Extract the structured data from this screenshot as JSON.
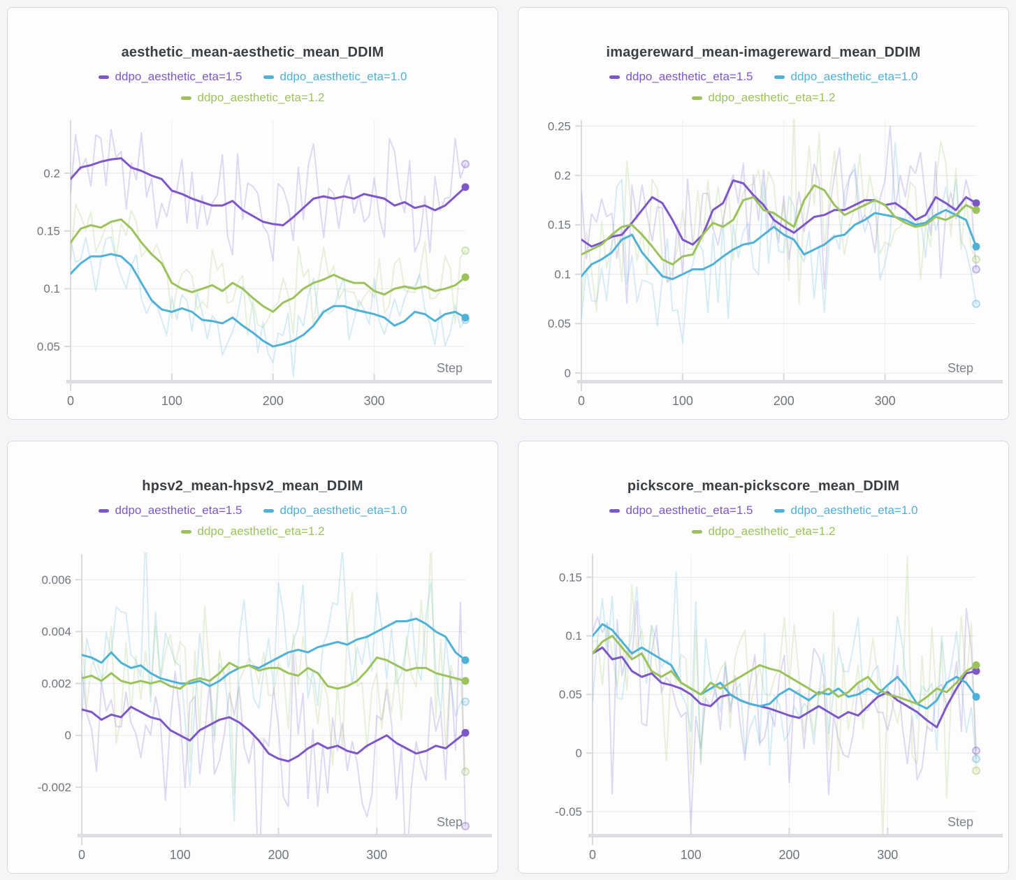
{
  "page": {
    "background": "#f4f5f6",
    "panel_count": 4
  },
  "palette": {
    "eta_1_5": "#7d57c7",
    "eta_1_0": "#4fb1d6",
    "eta_1_2": "#9cc35b",
    "grid_line": "#e8e8eb",
    "axis_line": "#d9d9de",
    "tick_text": "#6f767d",
    "step_text": "#7d848b",
    "title_text": "#3a3f44"
  },
  "chart_data": [
    {
      "type": "line",
      "title": "aesthetic_mean-aesthetic_mean_DDIM",
      "xlabel": "Step",
      "xlim": [
        0,
        390
      ],
      "ylim": [
        0.021,
        0.246
      ],
      "x_ticks": [
        0,
        100,
        200,
        300
      ],
      "x_tick_labels": [
        "0",
        "100",
        "200",
        "300"
      ],
      "y_ticks": [
        0.05,
        0.1,
        0.15,
        0.2
      ],
      "y_tick_labels": [
        "0.05",
        "0.1",
        "0.15",
        "0.2"
      ],
      "x_step_interval": 10,
      "note": "bold lines are smoothed means; faint jagged traces are raw values; dot = last smoothed value, ring = last raw value",
      "series": [
        {
          "name": "ddpo_aesthetic_eta=1.5",
          "color": "#7d57c7",
          "raw_amplitude": 0.033,
          "raw_end": 0.208,
          "seed": 3,
          "values": [
            0.195,
            0.205,
            0.207,
            0.21,
            0.212,
            0.213,
            0.205,
            0.202,
            0.198,
            0.195,
            0.185,
            0.182,
            0.178,
            0.175,
            0.172,
            0.172,
            0.176,
            0.168,
            0.163,
            0.158,
            0.156,
            0.155,
            0.162,
            0.17,
            0.178,
            0.18,
            0.178,
            0.18,
            0.178,
            0.182,
            0.18,
            0.178,
            0.172,
            0.175,
            0.17,
            0.172,
            0.168,
            0.172,
            0.18,
            0.188
          ]
        },
        {
          "name": "ddpo_aesthetic_eta=1.0",
          "color": "#4fb1d6",
          "raw_amplitude": 0.027,
          "raw_end": 0.073,
          "seed": 7,
          "values": [
            0.113,
            0.122,
            0.128,
            0.128,
            0.13,
            0.128,
            0.12,
            0.105,
            0.09,
            0.082,
            0.08,
            0.083,
            0.08,
            0.073,
            0.072,
            0.07,
            0.075,
            0.068,
            0.062,
            0.055,
            0.05,
            0.052,
            0.055,
            0.06,
            0.068,
            0.08,
            0.085,
            0.085,
            0.082,
            0.08,
            0.078,
            0.075,
            0.068,
            0.072,
            0.08,
            0.078,
            0.072,
            0.078,
            0.08,
            0.075
          ]
        },
        {
          "name": "ddpo_aesthetic_eta=1.2",
          "color": "#9cc35b",
          "raw_amplitude": 0.027,
          "raw_end": 0.133,
          "seed": 13,
          "values": [
            0.14,
            0.152,
            0.155,
            0.153,
            0.158,
            0.16,
            0.152,
            0.14,
            0.13,
            0.122,
            0.105,
            0.1,
            0.097,
            0.1,
            0.103,
            0.098,
            0.105,
            0.1,
            0.092,
            0.085,
            0.08,
            0.088,
            0.092,
            0.1,
            0.105,
            0.108,
            0.112,
            0.108,
            0.105,
            0.105,
            0.098,
            0.095,
            0.1,
            0.102,
            0.1,
            0.102,
            0.098,
            0.1,
            0.103,
            0.11
          ]
        }
      ]
    },
    {
      "type": "line",
      "title": "imagereward_mean-imagereward_mean_DDIM",
      "xlabel": "Step",
      "xlim": [
        0,
        390
      ],
      "ylim": [
        -0.007,
        0.256
      ],
      "x_ticks": [
        0,
        100,
        200,
        300
      ],
      "x_tick_labels": [
        "0",
        "100",
        "200",
        "300"
      ],
      "y_ticks": [
        0,
        0.05,
        0.1,
        0.15,
        0.2,
        0.25
      ],
      "y_tick_labels": [
        "0",
        "0.05",
        "0.1",
        "0.15",
        "0.2",
        "0.25"
      ],
      "x_step_interval": 10,
      "note": "bold lines are smoothed means; faint jagged traces are raw values; dot = last smoothed value, ring = last raw value",
      "series": [
        {
          "name": "ddpo_aesthetic_eta=1.5",
          "color": "#7d57c7",
          "raw_amplitude": 0.055,
          "raw_end": 0.105,
          "seed": 17,
          "values": [
            0.135,
            0.128,
            0.132,
            0.138,
            0.14,
            0.152,
            0.165,
            0.178,
            0.172,
            0.155,
            0.135,
            0.13,
            0.14,
            0.165,
            0.172,
            0.195,
            0.192,
            0.18,
            0.17,
            0.155,
            0.148,
            0.142,
            0.15,
            0.158,
            0.16,
            0.165,
            0.165,
            0.17,
            0.175,
            0.175,
            0.17,
            0.172,
            0.165,
            0.155,
            0.16,
            0.178,
            0.172,
            0.165,
            0.178,
            0.172
          ]
        },
        {
          "name": "ddpo_aesthetic_eta=1.0",
          "color": "#4fb1d6",
          "raw_amplitude": 0.055,
          "raw_end": 0.07,
          "seed": 23,
          "values": [
            0.098,
            0.11,
            0.115,
            0.122,
            0.135,
            0.14,
            0.122,
            0.11,
            0.098,
            0.095,
            0.1,
            0.105,
            0.105,
            0.11,
            0.118,
            0.125,
            0.13,
            0.132,
            0.14,
            0.148,
            0.14,
            0.135,
            0.12,
            0.125,
            0.13,
            0.138,
            0.14,
            0.15,
            0.155,
            0.162,
            0.16,
            0.158,
            0.155,
            0.15,
            0.152,
            0.16,
            0.165,
            0.16,
            0.155,
            0.128
          ]
        },
        {
          "name": "ddpo_aesthetic_eta=1.2",
          "color": "#9cc35b",
          "raw_amplitude": 0.055,
          "raw_end": 0.115,
          "seed": 29,
          "values": [
            0.12,
            0.125,
            0.13,
            0.14,
            0.148,
            0.15,
            0.14,
            0.128,
            0.115,
            0.11,
            0.118,
            0.12,
            0.14,
            0.152,
            0.148,
            0.155,
            0.175,
            0.178,
            0.165,
            0.162,
            0.155,
            0.148,
            0.175,
            0.19,
            0.185,
            0.17,
            0.16,
            0.165,
            0.17,
            0.175,
            0.17,
            0.158,
            0.152,
            0.148,
            0.15,
            0.158,
            0.155,
            0.16,
            0.17,
            0.165
          ]
        }
      ]
    },
    {
      "type": "line",
      "title": "hpsv2_mean-hpsv2_mean_DDIM",
      "xlabel": "Step",
      "xlim": [
        0,
        390
      ],
      "ylim": [
        -0.0038,
        0.007
      ],
      "x_ticks": [
        0,
        100,
        200,
        300
      ],
      "x_tick_labels": [
        "0",
        "100",
        "200",
        "300"
      ],
      "y_ticks": [
        -0.002,
        0,
        0.002,
        0.004,
        0.006
      ],
      "y_tick_labels": [
        "-0.002",
        "0",
        "0.002",
        "0.004",
        "0.006"
      ],
      "x_step_interval": 10,
      "note": "bold lines are smoothed means; faint jagged traces are raw values; dot = last smoothed value, ring = last raw value",
      "series": [
        {
          "name": "ddpo_aesthetic_eta=1.5",
          "color": "#7d57c7",
          "raw_amplitude": 0.0023,
          "raw_end": -0.0035,
          "seed": 31,
          "values": [
            0.001,
            0.0009,
            0.0006,
            0.0008,
            0.0007,
            0.0011,
            0.0009,
            0.0007,
            0.0006,
            0.0002,
            0.0,
            -0.0002,
            0.0002,
            0.0004,
            0.0006,
            0.0007,
            0.0005,
            0.0002,
            -0.0002,
            -0.0007,
            -0.0009,
            -0.001,
            -0.0008,
            -0.0005,
            -0.0003,
            -0.0005,
            -0.0004,
            -0.0006,
            -0.0007,
            -0.0004,
            -0.0002,
            0.0,
            -0.0003,
            -0.0005,
            -0.0007,
            -0.0006,
            -0.0004,
            -0.0005,
            -0.0002,
            0.0001
          ]
        },
        {
          "name": "ddpo_aesthetic_eta=1.0",
          "color": "#4fb1d6",
          "raw_amplitude": 0.0024,
          "raw_end": 0.0013,
          "seed": 37,
          "values": [
            0.0031,
            0.003,
            0.0028,
            0.0032,
            0.0028,
            0.0026,
            0.0027,
            0.0024,
            0.0022,
            0.0021,
            0.002,
            0.002,
            0.0021,
            0.0019,
            0.0021,
            0.0024,
            0.0026,
            0.0027,
            0.0026,
            0.0028,
            0.003,
            0.0032,
            0.0033,
            0.0032,
            0.0034,
            0.0035,
            0.0036,
            0.0035,
            0.0037,
            0.0038,
            0.004,
            0.0042,
            0.0044,
            0.0044,
            0.0045,
            0.0043,
            0.004,
            0.0038,
            0.0032,
            0.0029
          ]
        },
        {
          "name": "ddpo_aesthetic_eta=1.2",
          "color": "#9cc35b",
          "raw_amplitude": 0.0023,
          "raw_end": -0.0014,
          "seed": 41,
          "values": [
            0.0022,
            0.0023,
            0.0021,
            0.0024,
            0.0021,
            0.002,
            0.0021,
            0.002,
            0.0021,
            0.0019,
            0.0018,
            0.0021,
            0.0022,
            0.0021,
            0.0024,
            0.0028,
            0.0026,
            0.0027,
            0.0025,
            0.0026,
            0.0026,
            0.0024,
            0.0023,
            0.0026,
            0.0024,
            0.0019,
            0.0018,
            0.0019,
            0.0021,
            0.0025,
            0.003,
            0.0029,
            0.0027,
            0.0025,
            0.0026,
            0.0026,
            0.0024,
            0.0023,
            0.0022,
            0.0021
          ]
        }
      ]
    },
    {
      "type": "line",
      "title": "pickscore_mean-pickscore_mean_DDIM",
      "xlabel": "Step",
      "xlim": [
        0,
        390
      ],
      "ylim": [
        -0.069,
        0.17
      ],
      "x_ticks": [
        0,
        100,
        200,
        300
      ],
      "x_tick_labels": [
        "0",
        "100",
        "200",
        "300"
      ],
      "y_ticks": [
        -0.05,
        0,
        0.05,
        0.1,
        0.15
      ],
      "y_tick_labels": [
        "-0.05",
        "0",
        "0.05",
        "0.1",
        "0.15"
      ],
      "x_step_interval": 10,
      "note": "bold lines are smoothed means; faint jagged traces are raw values; dot = last smoothed value, ring = last raw value",
      "series": [
        {
          "name": "ddpo_aesthetic_eta=1.5",
          "color": "#7d57c7",
          "raw_amplitude": 0.046,
          "raw_end": 0.002,
          "seed": 43,
          "values": [
            0.085,
            0.09,
            0.08,
            0.082,
            0.07,
            0.065,
            0.068,
            0.06,
            0.058,
            0.055,
            0.05,
            0.042,
            0.04,
            0.048,
            0.05,
            0.045,
            0.042,
            0.04,
            0.038,
            0.035,
            0.032,
            0.03,
            0.035,
            0.04,
            0.035,
            0.03,
            0.035,
            0.032,
            0.04,
            0.048,
            0.052,
            0.045,
            0.04,
            0.035,
            0.028,
            0.022,
            0.04,
            0.055,
            0.068,
            0.07
          ]
        },
        {
          "name": "ddpo_aesthetic_eta=1.0",
          "color": "#4fb1d6",
          "raw_amplitude": 0.046,
          "raw_end": -0.005,
          "seed": 47,
          "values": [
            0.1,
            0.11,
            0.105,
            0.095,
            0.085,
            0.09,
            0.085,
            0.08,
            0.075,
            0.06,
            0.055,
            0.05,
            0.055,
            0.06,
            0.05,
            0.045,
            0.042,
            0.04,
            0.042,
            0.05,
            0.055,
            0.05,
            0.045,
            0.052,
            0.05,
            0.055,
            0.048,
            0.05,
            0.055,
            0.05,
            0.058,
            0.065,
            0.055,
            0.042,
            0.038,
            0.045,
            0.06,
            0.065,
            0.06,
            0.048
          ]
        },
        {
          "name": "ddpo_aesthetic_eta=1.2",
          "color": "#9cc35b",
          "raw_amplitude": 0.046,
          "raw_end": -0.015,
          "seed": 53,
          "values": [
            0.085,
            0.095,
            0.1,
            0.09,
            0.08,
            0.085,
            0.07,
            0.065,
            0.07,
            0.06,
            0.055,
            0.05,
            0.06,
            0.055,
            0.06,
            0.065,
            0.07,
            0.075,
            0.072,
            0.07,
            0.065,
            0.06,
            0.055,
            0.05,
            0.055,
            0.048,
            0.052,
            0.06,
            0.065,
            0.055,
            0.05,
            0.048,
            0.045,
            0.042,
            0.048,
            0.055,
            0.052,
            0.06,
            0.07,
            0.075
          ]
        }
      ]
    }
  ]
}
